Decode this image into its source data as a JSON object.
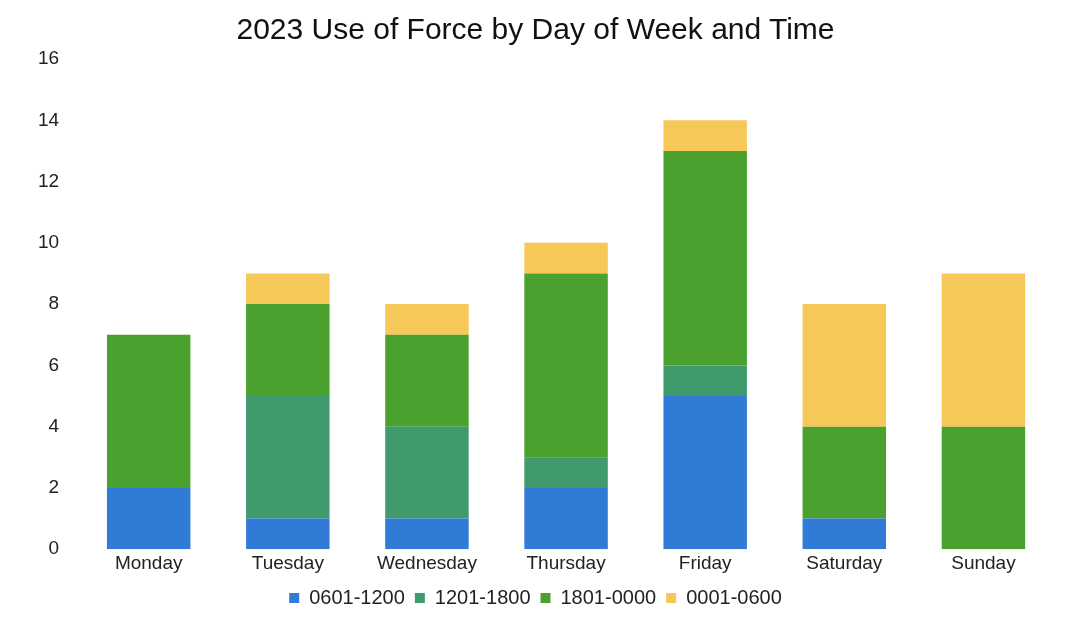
{
  "chart_data": {
    "type": "bar",
    "title": "2023 Use of Force by Day of Week and Time",
    "categories": [
      "Monday",
      "Tuesday",
      "Wednesday",
      "Thursday",
      "Friday",
      "Saturday",
      "Sunday"
    ],
    "stacked": true,
    "ylim": [
      0,
      16
    ],
    "yticks": [
      0,
      2,
      4,
      6,
      8,
      10,
      12,
      14,
      16
    ],
    "legend": "bottom",
    "series": [
      {
        "name": "0601-1200",
        "color": "#2f7bd6",
        "values": [
          2,
          1,
          1,
          2,
          5,
          1,
          0
        ]
      },
      {
        "name": "1201-1800",
        "color": "#3f9a6c",
        "values": [
          0,
          4,
          3,
          1,
          1,
          0,
          0
        ]
      },
      {
        "name": "1801-0000",
        "color": "#4ba12e",
        "values": [
          5,
          3,
          3,
          6,
          7,
          3,
          4
        ]
      },
      {
        "name": "0001-0600",
        "color": "#f6c858",
        "values": [
          0,
          1,
          1,
          1,
          1,
          4,
          5
        ]
      }
    ]
  }
}
